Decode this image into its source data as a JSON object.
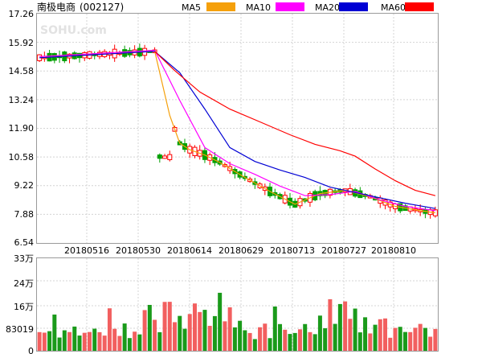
{
  "header": {
    "title": "南极电商",
    "code": "(002127)",
    "legend": [
      {
        "name": "MA5",
        "color": "#f5a00b"
      },
      {
        "name": "MA10",
        "color": "#ff00ff"
      },
      {
        "name": "MA20",
        "color": "#0000d4"
      },
      {
        "name": "MA60",
        "color": "#ff0000"
      }
    ]
  },
  "watermark": "SOHU.com",
  "colors": {
    "up": "#ff0000",
    "down": "#00a000",
    "vol_up": "#f25f5f",
    "vol_down": "#1a9a1a",
    "frame": "#9a9a9a"
  },
  "chart_data": [
    {
      "type": "candlestick",
      "panel": "price",
      "y_ticks": [
        "17.26",
        "15.92",
        "14.58",
        "13.24",
        "11.90",
        "10.58",
        "9.22",
        "7.88",
        "6.54"
      ],
      "ylim": [
        6.54,
        17.26
      ],
      "x_labels": [
        "20180516",
        "20180530",
        "20180614",
        "20180629",
        "20180713",
        "20180727",
        "20180810"
      ],
      "session_count": 80,
      "series": [
        {
          "name": "MA5",
          "color": "#f5a00b",
          "points": [
            [
              0,
              15.2
            ],
            [
              23,
              15.5
            ],
            [
              26,
              12.5
            ],
            [
              28,
              11.2
            ],
            [
              30,
              10.9
            ],
            [
              33,
              10.65
            ],
            [
              36,
              10.3
            ],
            [
              41,
              9.6
            ],
            [
              46,
              8.95
            ],
            [
              51,
              8.35
            ],
            [
              56,
              8.85
            ],
            [
              61,
              9.0
            ],
            [
              66,
              8.7
            ],
            [
              71,
              8.25
            ],
            [
              76,
              8.05
            ],
            [
              79,
              7.95
            ]
          ]
        },
        {
          "name": "MA10",
          "color": "#ff00ff",
          "points": [
            [
              0,
              15.25
            ],
            [
              23,
              15.55
            ],
            [
              28,
              13.2
            ],
            [
              33,
              11.0
            ],
            [
              38,
              10.25
            ],
            [
              43,
              9.75
            ],
            [
              48,
              9.2
            ],
            [
              53,
              8.75
            ],
            [
              58,
              8.8
            ],
            [
              63,
              8.95
            ],
            [
              68,
              8.55
            ],
            [
              73,
              8.25
            ],
            [
              79,
              8.05
            ]
          ]
        },
        {
          "name": "MA20",
          "color": "#0000d4",
          "points": [
            [
              0,
              15.2
            ],
            [
              23,
              15.5
            ],
            [
              28,
              14.5
            ],
            [
              33,
              12.8
            ],
            [
              38,
              11.0
            ],
            [
              43,
              10.35
            ],
            [
              48,
              9.95
            ],
            [
              53,
              9.6
            ],
            [
              58,
              9.15
            ],
            [
              63,
              8.9
            ],
            [
              68,
              8.65
            ],
            [
              73,
              8.4
            ],
            [
              79,
              8.15
            ]
          ]
        },
        {
          "name": "MA60",
          "color": "#ff0000",
          "points": [
            [
              23,
              15.5
            ],
            [
              27,
              14.6
            ],
            [
              32,
              13.6
            ],
            [
              38,
              12.8
            ],
            [
              44,
              12.2
            ],
            [
              50,
              11.6
            ],
            [
              55,
              11.15
            ],
            [
              60,
              10.85
            ],
            [
              63,
              10.6
            ],
            [
              67,
              10.0
            ],
            [
              71,
              9.45
            ],
            [
              75,
              9.0
            ],
            [
              79,
              8.75
            ]
          ]
        }
      ]
    },
    {
      "type": "bar",
      "panel": "volume",
      "y_ticks": [
        "33万",
        "24万",
        "16万",
        "83019",
        "0"
      ],
      "ylim": [
        0,
        330000
      ]
    }
  ]
}
